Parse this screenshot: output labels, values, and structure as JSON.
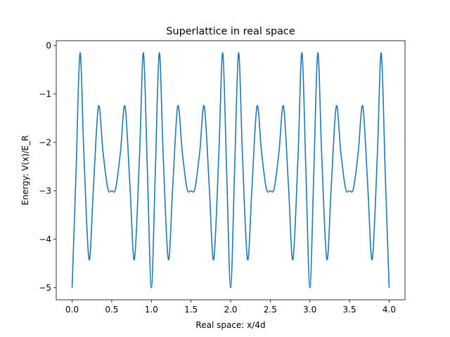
{
  "chart_data": {
    "type": "line",
    "title": "Superlattice in real space",
    "xlabel": "Real space: x/4d",
    "ylabel": "Energy: V(x)/E_R",
    "xlim": [
      -0.2,
      4.2
    ],
    "ylim": [
      -5.25,
      0.1
    ],
    "xticks": [
      0.0,
      0.5,
      1.0,
      1.5,
      2.0,
      2.5,
      3.0,
      3.5,
      4.0
    ],
    "xtick_labels": [
      "0.0",
      "0.5",
      "1.0",
      "1.5",
      "2.0",
      "2.5",
      "3.0",
      "3.5",
      "4.0"
    ],
    "yticks": [
      0,
      -1,
      -2,
      -3,
      -4,
      -5
    ],
    "ytick_labels": [
      "0",
      "−1",
      "−2",
      "−3",
      "−4",
      "−5"
    ],
    "grid": false,
    "series": [
      {
        "color": "#1f77b4",
        "x": [
          0.0,
          0.05,
          0.1,
          0.15,
          0.214,
          0.27,
          0.333,
          0.39,
          0.45,
          0.5,
          0.55,
          0.61,
          0.667,
          0.73,
          0.786,
          0.85,
          0.9,
          0.95,
          1.0,
          1.05,
          1.1,
          1.15,
          1.214,
          1.27,
          1.333,
          1.39,
          1.45,
          1.5,
          1.55,
          1.61,
          1.667,
          1.73,
          1.786,
          1.85,
          1.9,
          1.95,
          2.0,
          2.05,
          2.1,
          2.15,
          2.214,
          2.27,
          2.333,
          2.39,
          2.45,
          2.5,
          2.55,
          2.61,
          2.667,
          2.73,
          2.786,
          2.85,
          2.9,
          2.95,
          3.0,
          3.05,
          3.1,
          3.15,
          3.214,
          3.27,
          3.333,
          3.39,
          3.45,
          3.5,
          3.55,
          3.61,
          3.667,
          3.73,
          3.786,
          3.85,
          3.9,
          3.95,
          4.0
        ],
        "y": [
          -5.0,
          -2.6,
          -0.15,
          -2.3,
          -4.42,
          -2.9,
          -1.25,
          -2.2,
          -2.95,
          -3.0,
          -2.95,
          -2.2,
          -1.25,
          -2.9,
          -4.42,
          -2.3,
          -0.15,
          -2.6,
          -5.0,
          -2.6,
          -0.15,
          -2.3,
          -4.42,
          -2.9,
          -1.25,
          -2.2,
          -2.95,
          -3.0,
          -2.95,
          -2.2,
          -1.25,
          -2.9,
          -4.42,
          -2.3,
          -0.15,
          -2.6,
          -5.0,
          -2.6,
          -0.15,
          -2.3,
          -4.42,
          -2.9,
          -1.25,
          -2.2,
          -2.95,
          -3.0,
          -2.95,
          -2.2,
          -1.25,
          -2.9,
          -4.42,
          -2.3,
          -0.15,
          -2.6,
          -5.0,
          -2.6,
          -0.15,
          -2.3,
          -4.42,
          -2.9,
          -1.25,
          -2.2,
          -2.95,
          -3.0,
          -2.95,
          -2.2,
          -1.25,
          -2.9,
          -4.42,
          -2.3,
          -0.15,
          -2.6,
          -5.0
        ]
      }
    ]
  }
}
